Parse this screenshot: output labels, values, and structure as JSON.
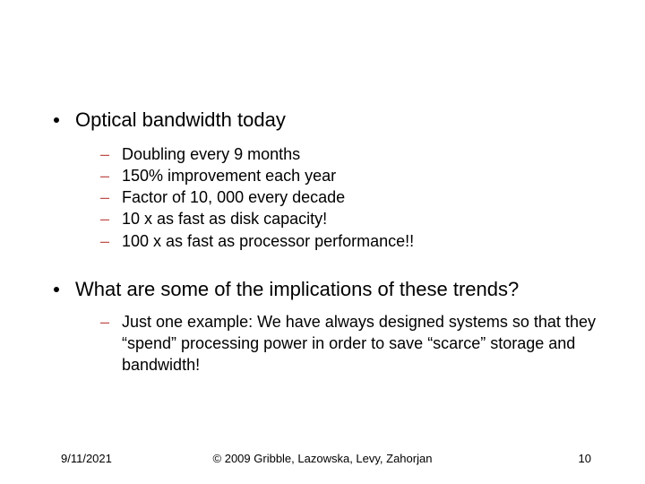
{
  "slide": {
    "bullets": [
      {
        "text": "Optical bandwidth today",
        "sub": [
          "Doubling every 9 months",
          "150% improvement each year",
          "Factor of 10, 000 every decade",
          "10 x as fast as disk capacity!",
          "100 x as fast as processor performance!!"
        ]
      },
      {
        "text": "What are some of the implications of these trends?",
        "sub": [
          "Just one example:  We have always designed systems so that they “spend” processing power in order to save “scarce” storage and bandwidth!"
        ]
      }
    ]
  },
  "footer": {
    "date": "9/11/2021",
    "copyright": "© 2009 Gribble, Lazowska, Levy, Zahorjan",
    "page": "10"
  },
  "colors": {
    "dash": "#C0504D",
    "text": "#000000",
    "background": "#ffffff"
  },
  "fonts": {
    "top_bullet_size": 22,
    "sub_bullet_size": 18,
    "footer_size": 13
  }
}
